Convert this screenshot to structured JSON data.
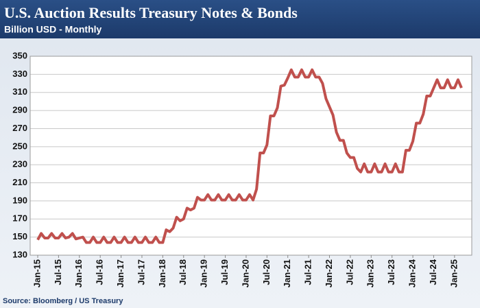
{
  "chart_data": {
    "type": "line",
    "title": "U.S. Auction Results Treasury Notes & Bonds",
    "subtitle": "Billion USD - Monthly",
    "source": "Source: Bloomberg / US Treasury",
    "categories": [
      "Jan-15",
      null,
      null,
      null,
      null,
      null,
      "Jul-15",
      null,
      null,
      null,
      null,
      null,
      "Jan-16",
      null,
      null,
      null,
      null,
      null,
      "Jul-16",
      null,
      null,
      null,
      null,
      null,
      "Jan-17",
      null,
      null,
      null,
      null,
      null,
      "Jul-17",
      null,
      null,
      null,
      null,
      null,
      "Jan-18",
      null,
      null,
      null,
      null,
      null,
      "Jul-18",
      null,
      null,
      null,
      null,
      null,
      "Jan-19",
      null,
      null,
      null,
      null,
      null,
      "Jul-19",
      null,
      null,
      null,
      null,
      null,
      "Jan-20",
      null,
      null,
      null,
      null,
      null,
      "Jul-20",
      null,
      null,
      null,
      null,
      null,
      "Jan-21",
      null,
      null,
      null,
      null,
      null,
      "Jul-21",
      null,
      null,
      null,
      null,
      null,
      "Jan-22",
      null,
      null,
      null,
      null,
      null,
      "Jul-22",
      null,
      null,
      null,
      null,
      null,
      "Jan-23",
      null,
      null,
      null,
      null,
      null,
      "Jul-23",
      null,
      null,
      null,
      null,
      null,
      "Jan-24",
      null,
      null,
      null,
      null,
      null,
      "Jul-24",
      null,
      null,
      null,
      null,
      null,
      "Jan-25",
      null,
      null
    ],
    "series": [
      {
        "name": "Treasury Notes & Bonds",
        "color": "#c0504d",
        "values": [
          147,
          154,
          149,
          149,
          154,
          149,
          149,
          154,
          149,
          150,
          154,
          148,
          149,
          150,
          144,
          144,
          150,
          144,
          144,
          150,
          144,
          144,
          150,
          144,
          144,
          150,
          144,
          144,
          150,
          144,
          144,
          150,
          144,
          144,
          150,
          144,
          144,
          158,
          156,
          160,
          172,
          168,
          170,
          182,
          180,
          182,
          194,
          191,
          191,
          197,
          191,
          191,
          197,
          191,
          191,
          197,
          191,
          191,
          197,
          191,
          191,
          197,
          191,
          203,
          243,
          243,
          252,
          284,
          284,
          293,
          317,
          318,
          326,
          335,
          327,
          327,
          335,
          327,
          327,
          335,
          327,
          327,
          320,
          303,
          294,
          285,
          266,
          257,
          257,
          243,
          238,
          238,
          226,
          222,
          231,
          222,
          222,
          231,
          222,
          222,
          231,
          222,
          222,
          231,
          222,
          222,
          246,
          246,
          256,
          276,
          276,
          286,
          306,
          306,
          315,
          324,
          315,
          315,
          324,
          315,
          315,
          324,
          315
        ]
      }
    ],
    "ylim": [
      130,
      350
    ],
    "yticks": [
      130,
      150,
      170,
      190,
      210,
      230,
      250,
      270,
      290,
      310,
      330,
      350
    ],
    "grid": true
  }
}
